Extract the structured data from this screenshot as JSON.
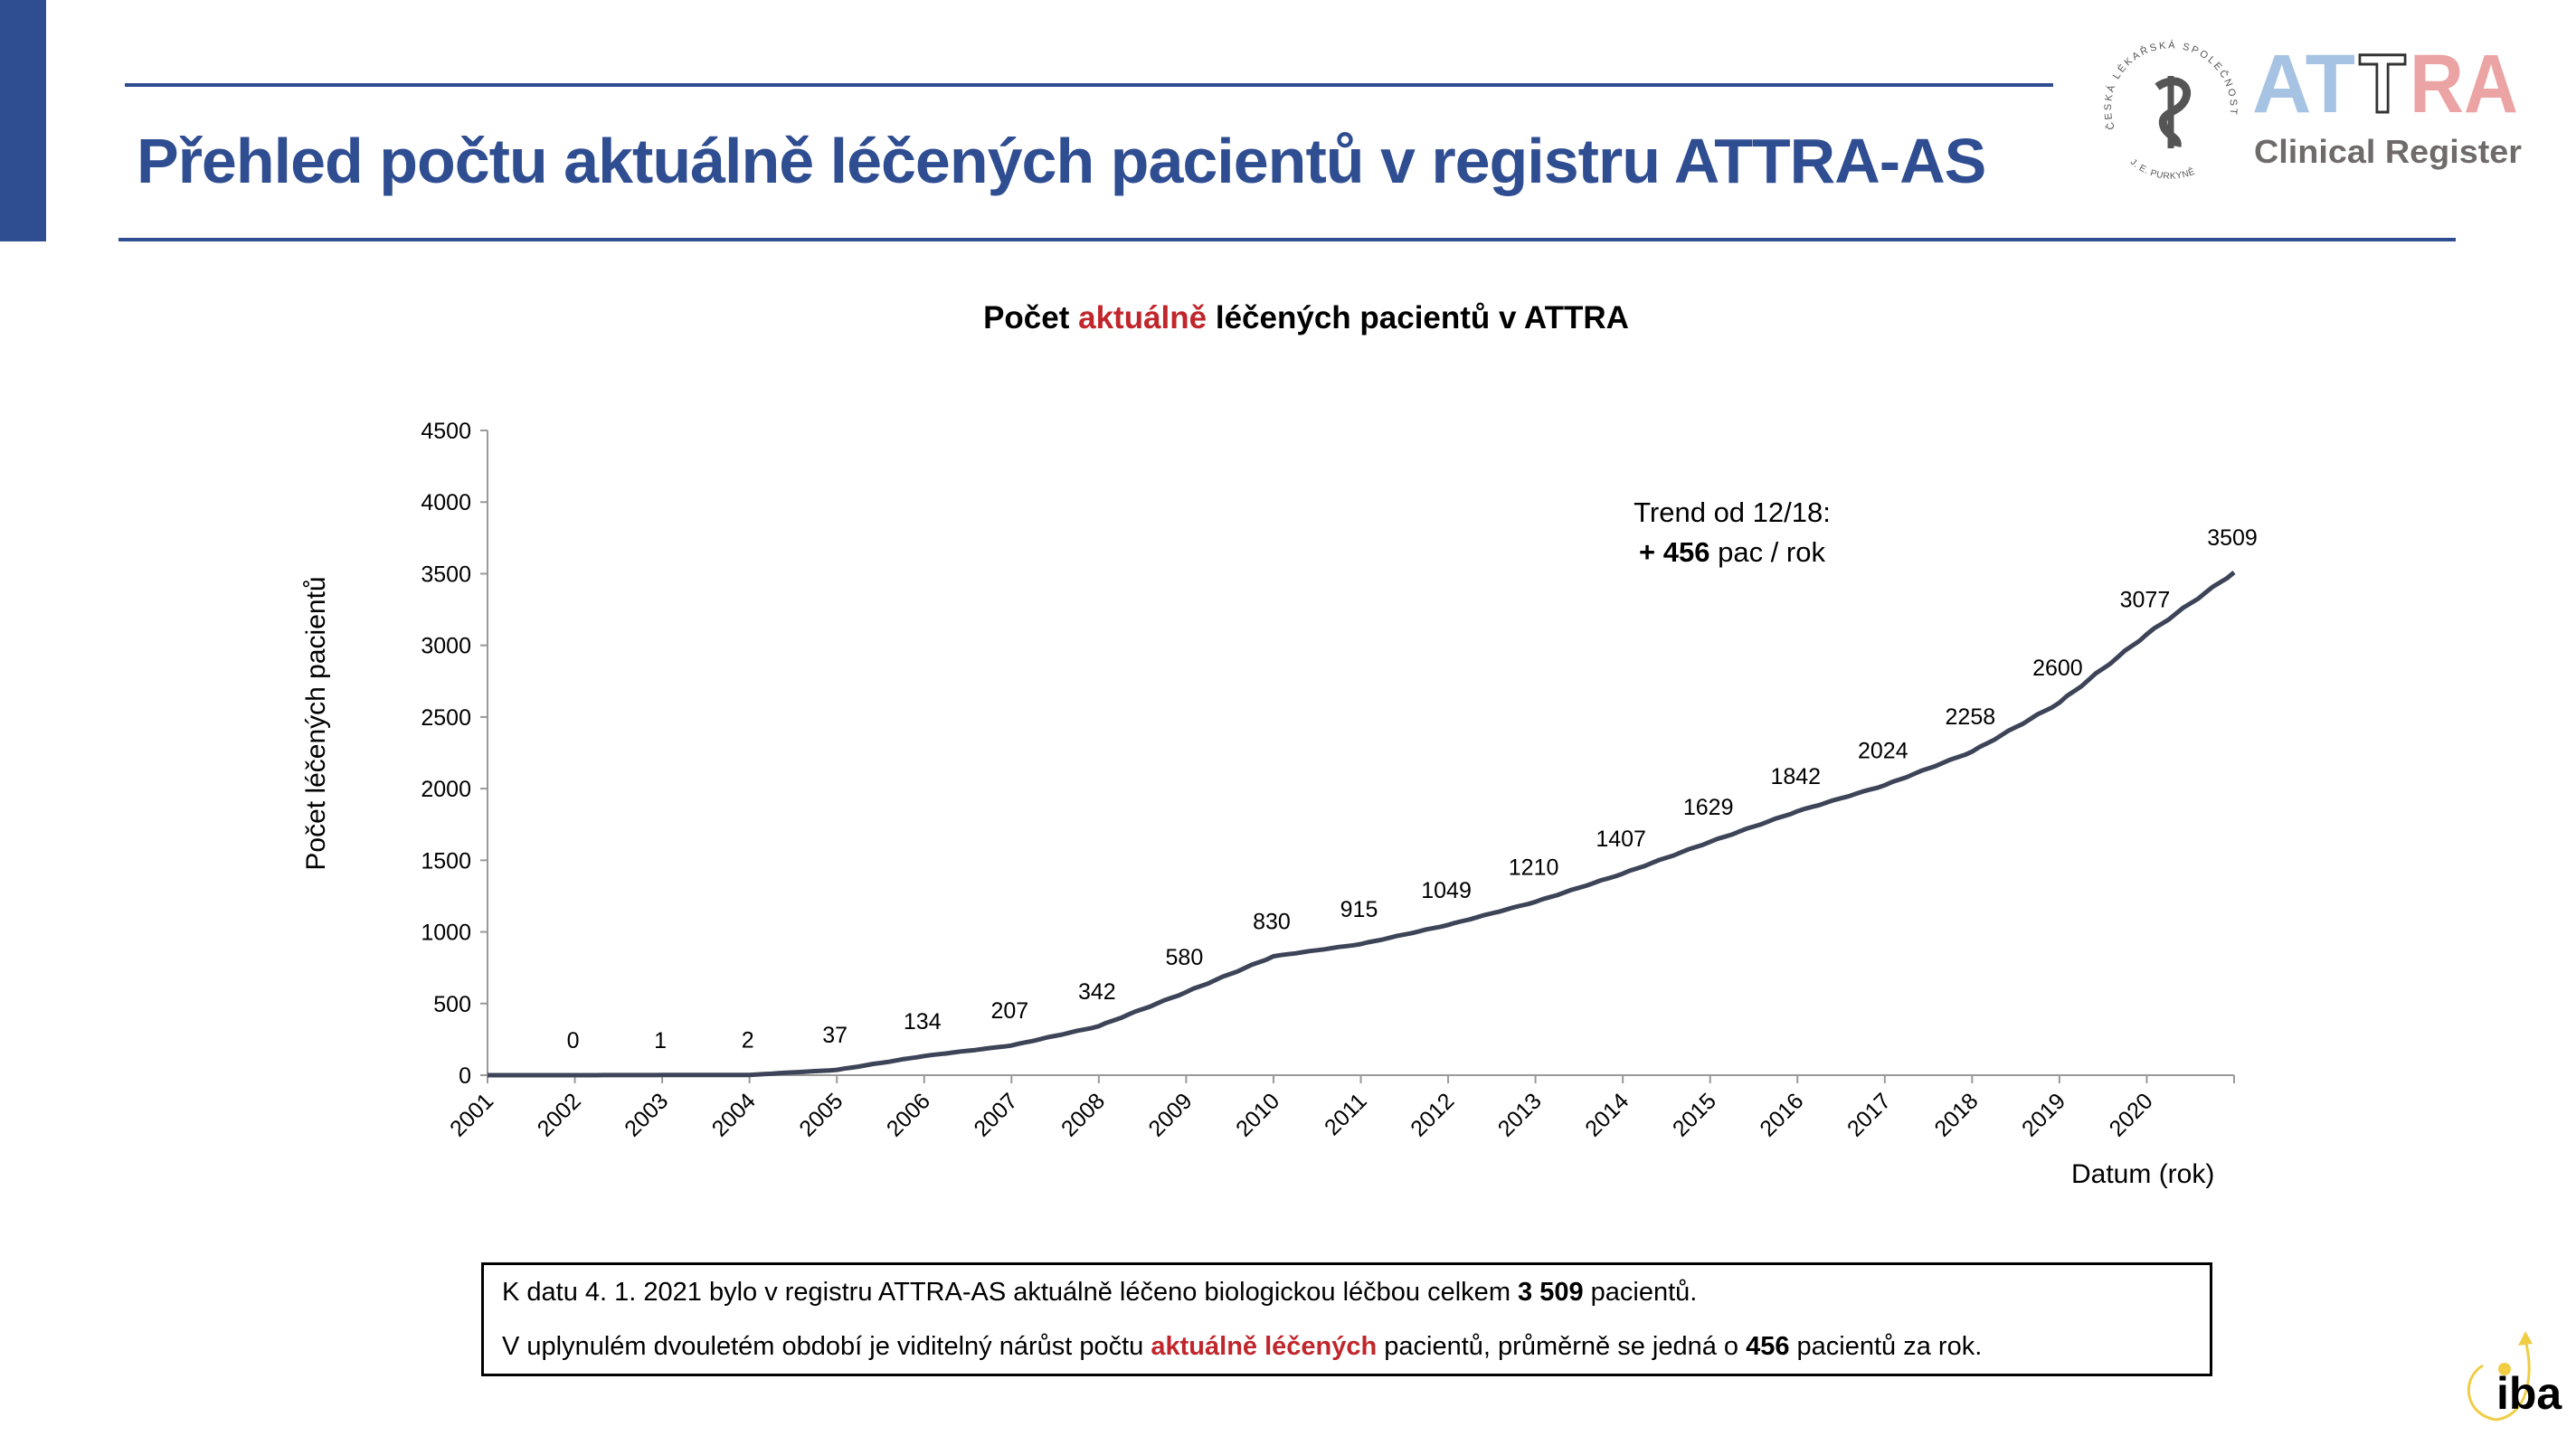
{
  "header": {
    "title": "Přehled počtu aktuálně léčených pacientů v registru ATTRA-AS",
    "logo_seal_text": [
      "ČESKÁ LÉKAŘSKÁ SPOLEČNOST",
      "J. E. PURKYNĚ"
    ],
    "logo_attra": {
      "letters": "ATTRA",
      "subtitle": "Clinical Register"
    },
    "logo_iba": "iba",
    "colors": {
      "brand_blue": "#2f4d91",
      "attra_blue": "#a6c3e3",
      "attra_red": "#eba3a3",
      "attra_gray": "#6f6b6b",
      "iba_yellow": "#f0cd45"
    }
  },
  "chart_title": {
    "pre": "Počet ",
    "highlight": "aktuálně",
    "post": " léčených pacientů v ATTRA"
  },
  "chart_data": {
    "type": "line",
    "title": "Počet aktuálně léčených pacientů v ATTRA",
    "xlabel": "Datum (rok)",
    "ylabel": "Počet  léčených pacientů",
    "xlim": [
      2001,
      2021
    ],
    "ylim": [
      0,
      4500
    ],
    "yticks": [
      0,
      500,
      1000,
      1500,
      2000,
      2500,
      3000,
      3500,
      4000,
      4500
    ],
    "xticks": [
      "2001",
      "2002",
      "2003",
      "2004",
      "2005",
      "2006",
      "2007",
      "2008",
      "2009",
      "2010",
      "2011",
      "2012",
      "2013",
      "2014",
      "2015",
      "2016",
      "2017",
      "2018",
      "2019",
      "2020"
    ],
    "grid": false,
    "legend": "none",
    "line_color": "#3d4458",
    "series": [
      {
        "x": [
          2001,
          2002,
          2003,
          2004,
          2005,
          2006,
          2007,
          2008,
          2009,
          2010,
          2011,
          2012,
          2013,
          2014,
          2015,
          2016,
          2017,
          2018,
          2019,
          2020,
          2021
        ],
        "values": [
          0,
          0,
          1,
          2,
          37,
          134,
          207,
          342,
          580,
          830,
          915,
          1049,
          1210,
          1407,
          1629,
          1842,
          2024,
          2258,
          2600,
          3077,
          3509
        ],
        "data_labels": [
          "",
          "0",
          "1",
          "2",
          "37",
          "134",
          "207",
          "342",
          "580",
          "830",
          "915",
          "1049",
          "1210",
          "1407",
          "1629",
          "1842",
          "2024",
          "2258",
          "2600",
          "3077",
          "3509"
        ]
      }
    ],
    "annotation": {
      "line1": "Trend od 12/18:",
      "line2_bold": "+ 456",
      "line2_rest": " pac / rok"
    }
  },
  "summary": {
    "line1_pre": "K datu 4. 1. 2021 bylo v registru ATTRA-AS aktuálně léčeno biologickou léčbou celkem ",
    "line1_bold": "3 509",
    "line1_post": " pacientů.",
    "line2_pre": "V uplynulém dvouletém období je viditelný nárůst počtu ",
    "line2_red": "aktuálně léčených",
    "line2_mid": " pacientů, průměrně se jedná o ",
    "line2_bold": "456",
    "line2_post": " pacientů za rok."
  }
}
